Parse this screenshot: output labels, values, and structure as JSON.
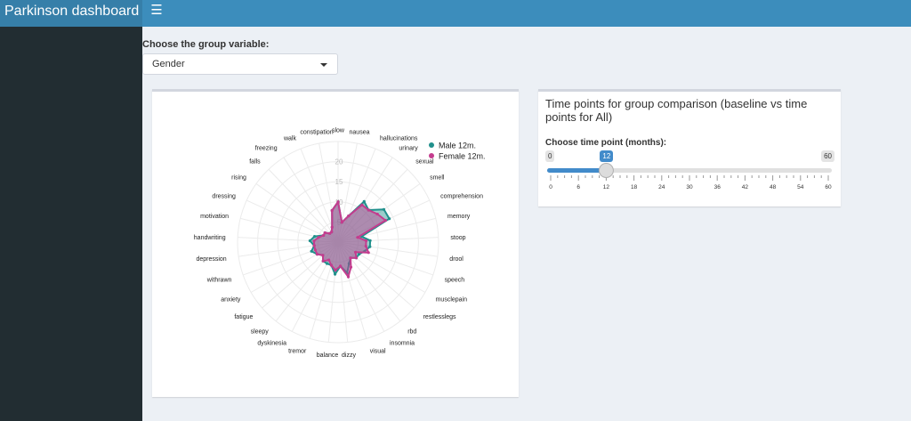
{
  "header": {
    "brand": "Parkinson dashboard",
    "menu_icon": "hamburger-icon"
  },
  "controls": {
    "group_label": "Choose the group variable:",
    "group_value": "Gender"
  },
  "timepoints": {
    "title": "Time points for group comparison (baseline vs time points for All)",
    "slider_label": "Choose time point (months):",
    "min": 0,
    "max": 60,
    "value": 12,
    "min_label": "0",
    "max_label": "60",
    "value_label": "12",
    "ticks": [
      "0",
      "6",
      "12",
      "18",
      "24",
      "30",
      "36",
      "42",
      "48",
      "54",
      "60"
    ]
  },
  "colors": {
    "male": "#21908c",
    "female": "#c43c8e",
    "accent": "#3c8dbc"
  },
  "chart_data": {
    "type": "radar",
    "rmax": 25,
    "radial_ticks": [
      "5",
      "10",
      "15",
      "20"
    ],
    "legend_position": "top-right",
    "categories": [
      "slow",
      "nausea",
      "hallucinations",
      "urinary",
      "sexual",
      "smell",
      "comprehension",
      "memory",
      "stoop",
      "drool",
      "speech",
      "musclepain",
      "restlesslegs",
      "rbd",
      "insomnia",
      "visual",
      "dizzy",
      "balance",
      "tremor",
      "dyskinesia",
      "sleepy",
      "fatigue",
      "anxiety",
      "withrawn",
      "depression",
      "handwriting",
      "motivation",
      "dressing",
      "rising",
      "falls",
      "freezing",
      "walk",
      "constipation"
    ],
    "series": [
      {
        "name": "Male 12m.",
        "values": [
          10,
          5,
          7,
          12,
          11,
          14,
          14,
          6,
          8,
          8,
          7,
          6,
          6,
          5,
          6,
          8,
          6,
          8,
          6,
          6,
          6,
          5,
          6,
          7,
          6,
          7,
          6,
          4,
          4,
          3,
          3,
          4,
          8
        ]
      },
      {
        "name": "Female 12m.",
        "values": [
          10,
          5,
          7,
          11,
          11,
          12,
          13,
          5,
          7,
          7,
          8,
          5,
          6,
          5,
          7,
          9,
          6,
          7,
          6,
          5,
          6,
          5,
          6,
          6,
          6,
          6,
          5,
          4,
          4,
          3,
          3,
          4,
          8
        ]
      }
    ]
  }
}
